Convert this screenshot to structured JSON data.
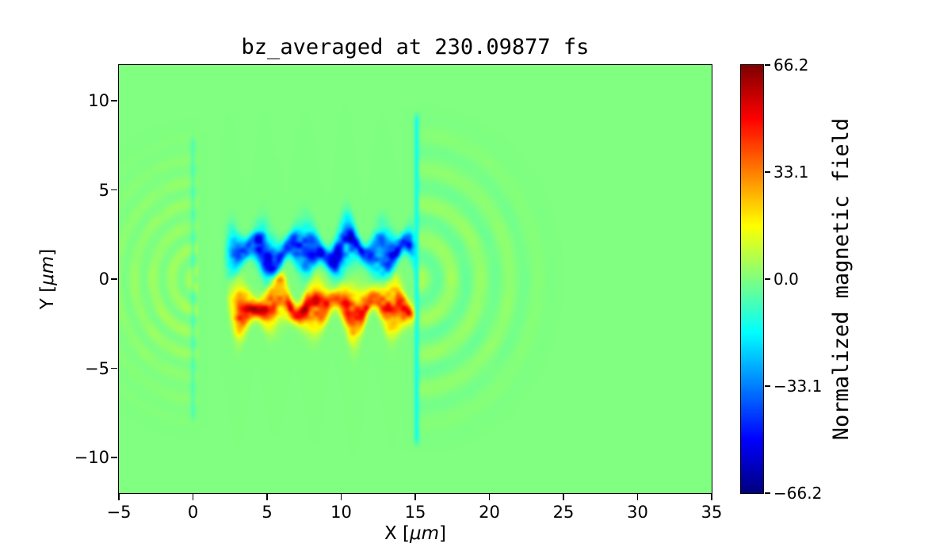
{
  "chart_data": {
    "type": "heatmap",
    "title": "bz_averaged at 230.09877 fs",
    "xlabel": "X [μm]",
    "ylabel": "Y [μm]",
    "xlabel_parts": {
      "pre": "X [",
      "unit": "μm",
      "post": "]"
    },
    "ylabel_parts": {
      "pre": "Y [",
      "unit": "μm",
      "post": "]"
    },
    "xlim": [
      -5,
      35
    ],
    "ylim": [
      -12,
      12
    ],
    "xticks": {
      "values": [
        -5,
        0,
        5,
        10,
        15,
        20,
        25,
        30,
        35
      ],
      "labels": [
        "−5",
        "0",
        "5",
        "10",
        "15",
        "20",
        "25",
        "30",
        "35"
      ]
    },
    "yticks": {
      "values": [
        -10,
        -5,
        0,
        5,
        10
      ],
      "labels": [
        "−10",
        "−5",
        "0",
        "5",
        "10"
      ]
    },
    "colormap": "jet",
    "grid": false,
    "colorbar": {
      "label": "Normalized magnetic field",
      "vmin": -66.2,
      "vmax": 66.2,
      "tick_values": [
        66.2,
        33.1,
        0.0,
        -33.1,
        -66.2
      ],
      "tick_labels": [
        "66.2",
        "33.1",
        "0.0",
        "−33.1",
        "−66.2"
      ]
    },
    "features": [
      {
        "id": "background",
        "value": 0
      },
      {
        "id": "negative-filament-band",
        "x_range": [
          1.9,
          15.2
        ],
        "y_center": 1.55,
        "y_sigma": 0.8,
        "peak": -58,
        "description": "turbulent blue filament band above axis between x=2 and x=15"
      },
      {
        "id": "positive-filament-band",
        "x_range": [
          2.1,
          15.2
        ],
        "y_center": -1.5,
        "y_sigma": 0.8,
        "peak": 58,
        "description": "turbulent red/orange filament band below axis between x=2 and x=15"
      },
      {
        "id": "left-wave-arcs",
        "center": [
          0.3,
          0
        ],
        "max_radius": 9.0,
        "amplitude": 10,
        "ring_freq": 5.0,
        "description": "faint yellow-green circular wavefronts left of x=0"
      },
      {
        "id": "right-wave-arcs",
        "center": [
          15.2,
          0
        ],
        "max_radius": 9.8,
        "amplitude": 11,
        "ring_freq": 3.2,
        "description": "faint cyan/yellow circular wavefronts right of x=15"
      },
      {
        "id": "left-boundary-line",
        "x": 0.0,
        "y_extent": 8.3,
        "amplitude": -6
      },
      {
        "id": "right-boundary-line",
        "x": 15.1,
        "y_extent": 9.6,
        "amplitude": -14
      }
    ]
  }
}
